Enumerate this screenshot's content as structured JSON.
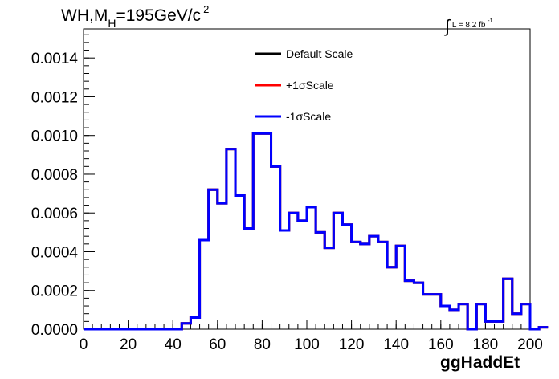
{
  "header": {
    "title_main": "WH,M",
    "title_sub": "H",
    "title_rest": "=195GeV/c",
    "title_sup": "2",
    "lumi_text": "L = 8.2 fb",
    "lumi_sup": "-1",
    "lumi_integral": "∫"
  },
  "legend": {
    "entries": [
      {
        "label": "Default Scale",
        "color": "#000000"
      },
      {
        "label": "+1σScale",
        "color": "#ff0000"
      },
      {
        "label": "-1σScale",
        "color": "#0000ff"
      }
    ]
  },
  "chart_data": {
    "type": "line",
    "title": "WH,M_H=195GeV/c^2",
    "xlabel": "ggHaddEt",
    "ylabel": "",
    "xlim": [
      0,
      200
    ],
    "ylim": [
      0,
      0.00155
    ],
    "x_ticks": [
      "0",
      "20",
      "40",
      "60",
      "80",
      "100",
      "120",
      "140",
      "160",
      "180",
      "200"
    ],
    "y_ticks": [
      "0.0000",
      "0.0002",
      "0.0004",
      "0.0006",
      "0.0008",
      "0.0010",
      "0.0012",
      "0.0014"
    ],
    "y_tick_values": [
      0,
      0.0002,
      0.0004,
      0.0006,
      0.0008,
      0.001,
      0.0012,
      0.0014
    ],
    "bin_width": 4,
    "bin_edges_start": 0,
    "series": [
      {
        "name": "Default Scale",
        "color": "#000000",
        "values": [
          0,
          0,
          0,
          0,
          0,
          0,
          0,
          0,
          0,
          0,
          0,
          3e-05,
          6e-05,
          0.00046,
          0.00072,
          0.00065,
          0.00093,
          0.00069,
          0.00052,
          0.00101,
          0.00101,
          0.00084,
          0.00051,
          0.0006,
          0.00056,
          0.00063,
          0.0005,
          0.00042,
          0.0006,
          0.00054,
          0.00045,
          0.00044,
          0.00048,
          0.00045,
          0.00032,
          0.00043,
          0.00025,
          0.00024,
          0.00018,
          0.00018,
          0.00012,
          0.0001,
          0.00013,
          0.0,
          0.00013,
          4e-05,
          4e-05,
          0.00026,
          8e-05,
          0.00013,
          0.0,
          1e-05
        ]
      },
      {
        "name": "+1σScale",
        "color": "#ff0000",
        "values": [
          0,
          0,
          0,
          0,
          0,
          0,
          0,
          0,
          0,
          0,
          0,
          3e-05,
          6e-05,
          0.00046,
          0.00072,
          0.00065,
          0.00093,
          0.00069,
          0.00052,
          0.00101,
          0.00101,
          0.00084,
          0.00051,
          0.0006,
          0.00056,
          0.00063,
          0.0005,
          0.00042,
          0.0006,
          0.00054,
          0.00045,
          0.00044,
          0.00048,
          0.00045,
          0.00032,
          0.00043,
          0.00025,
          0.00024,
          0.00018,
          0.00018,
          0.00012,
          0.0001,
          0.00013,
          0.0,
          0.00013,
          4e-05,
          4e-05,
          0.00026,
          8e-05,
          0.00013,
          0.0,
          1e-05
        ]
      },
      {
        "name": "-1σScale",
        "color": "#0000ff",
        "values": [
          0,
          0,
          0,
          0,
          0,
          0,
          0,
          0,
          0,
          0,
          0,
          3e-05,
          6e-05,
          0.00046,
          0.00072,
          0.00065,
          0.00093,
          0.00069,
          0.00052,
          0.00101,
          0.00101,
          0.00084,
          0.00051,
          0.0006,
          0.00056,
          0.00063,
          0.0005,
          0.00042,
          0.0006,
          0.00054,
          0.00045,
          0.00044,
          0.00048,
          0.00045,
          0.00032,
          0.00043,
          0.00025,
          0.00024,
          0.00018,
          0.00018,
          0.00012,
          0.0001,
          0.00013,
          0.0,
          0.00013,
          4e-05,
          4e-05,
          0.00026,
          8e-05,
          0.00013,
          0.0,
          1e-05
        ]
      }
    ],
    "grid": false,
    "legend_position": "top-center"
  }
}
